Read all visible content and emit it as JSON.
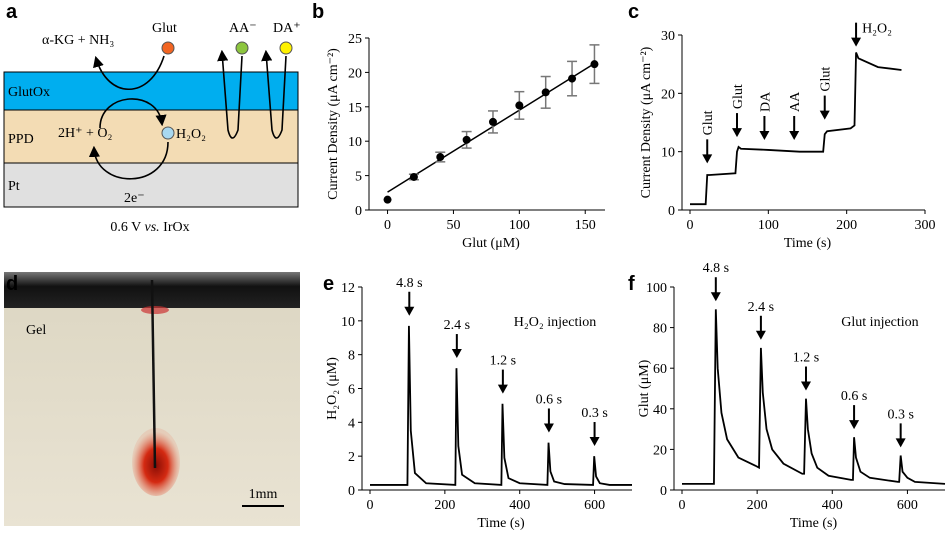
{
  "diagram": {
    "label": "a",
    "products": "α-KG + NH₃",
    "glut": "Glut",
    "aa": "AA⁻",
    "da": "DA⁺",
    "layers": [
      "GlutOx",
      "PPD",
      "Pt"
    ],
    "reactants": "2H⁺ + O₂",
    "h2o2": "H₂O₂",
    "electrons": "2e⁻",
    "potential": [
      "0.6 V ",
      "vs.",
      " IrOx"
    ]
  },
  "photo": {
    "label": "d",
    "gel": "Gel",
    "scale": "1mm"
  },
  "chart_data": [
    {
      "type": "scatter",
      "label": "b",
      "xlabel": "Glut (μM)",
      "ylabel": "Current Density (μA cm⁻²)",
      "xlim": [
        -8,
        165
      ],
      "xticks": [
        0,
        50,
        100,
        150
      ],
      "ylim": [
        0,
        25
      ],
      "yticks": [
        0,
        5,
        10,
        15,
        20,
        25
      ],
      "color": "#000000",
      "series": [
        {
          "x": [
            0,
            20,
            40,
            60,
            80,
            100,
            120,
            140,
            157
          ],
          "values": [
            1.5,
            4.8,
            7.7,
            10.2,
            12.8,
            15.2,
            17.1,
            19.1,
            21.2
          ],
          "errors": [
            0,
            0.4,
            0.7,
            1.2,
            1.6,
            2.0,
            2.3,
            2.5,
            2.8
          ]
        }
      ],
      "fit": {
        "x": [
          0,
          157
        ],
        "values": [
          2.6,
          21.3
        ]
      }
    },
    {
      "type": "line",
      "label": "c",
      "xlabel": "Time (s)",
      "ylabel": "Current Density (μA cm⁻²)",
      "xlim": [
        0,
        300
      ],
      "xticks": [
        0,
        100,
        200,
        300
      ],
      "ylim": [
        0,
        30
      ],
      "yticks": [
        0,
        10,
        20,
        30
      ],
      "color": "#000000",
      "x": [
        0,
        20,
        22,
        25,
        58,
        60,
        62,
        65,
        100,
        140,
        170,
        172,
        175,
        205,
        210,
        212,
        215,
        240,
        270
      ],
      "values": [
        1,
        1,
        6,
        6,
        6.3,
        10,
        10.8,
        10.5,
        10.3,
        10,
        10,
        13,
        13.5,
        14,
        14.5,
        27,
        26,
        24.5,
        24
      ],
      "annotations": [
        {
          "text": "Glut",
          "x": 22,
          "y": 8,
          "orientation": "vertical"
        },
        {
          "text": "Glut",
          "x": 60,
          "y": 12.5,
          "orientation": "vertical"
        },
        {
          "text": "DA",
          "x": 95,
          "y": 12,
          "orientation": "vertical"
        },
        {
          "text": "AA",
          "x": 133,
          "y": 12,
          "orientation": "vertical"
        },
        {
          "text": "Glut",
          "x": 172,
          "y": 15.5,
          "orientation": "vertical"
        },
        {
          "text": "H₂O₂",
          "x": 212,
          "y": 28,
          "orientation": "horizontal"
        }
      ]
    },
    {
      "type": "line",
      "label": "e",
      "xlabel": "Time (s)",
      "ylabel": "H₂O₂ (μM)",
      "note": "H₂O₂ injection",
      "xlim": [
        0,
        700
      ],
      "xticks": [
        0,
        200,
        400,
        600
      ],
      "ylim": [
        0,
        12
      ],
      "yticks": [
        0,
        2,
        4,
        6,
        8,
        10,
        12
      ],
      "color": "#000000",
      "x": [
        0,
        100,
        104,
        109,
        120,
        150,
        228,
        231,
        236,
        246,
        280,
        351,
        354,
        359,
        370,
        400,
        474,
        477,
        482,
        492,
        520,
        596,
        599,
        604,
        614,
        640,
        700
      ],
      "values": [
        0.3,
        0.3,
        9.7,
        3.5,
        1.0,
        0.4,
        0.3,
        7.2,
        2.6,
        0.9,
        0.4,
        0.3,
        5.1,
        1.9,
        0.7,
        0.4,
        0.3,
        2.8,
        1.1,
        0.5,
        0.35,
        0.3,
        2.0,
        0.8,
        0.4,
        0.3,
        0.3
      ],
      "annotations": [
        {
          "text": "4.8 s",
          "x": 105,
          "y": 10.3,
          "orientation": "horizontal"
        },
        {
          "text": "2.4 s",
          "x": 232,
          "y": 7.8,
          "orientation": "horizontal"
        },
        {
          "text": "1.2 s",
          "x": 355,
          "y": 5.7,
          "orientation": "horizontal"
        },
        {
          "text": "0.6 s",
          "x": 478,
          "y": 3.4,
          "orientation": "horizontal"
        },
        {
          "text": "0.3 s",
          "x": 600,
          "y": 2.6,
          "orientation": "horizontal"
        }
      ]
    },
    {
      "type": "line",
      "label": "f",
      "xlabel": "Time (s)",
      "ylabel": "Glut (μM)",
      "note": "Glut injection",
      "xlim": [
        0,
        700
      ],
      "xticks": [
        0,
        200,
        400,
        600
      ],
      "ylim": [
        0,
        100
      ],
      "yticks": [
        0,
        20,
        40,
        60,
        80,
        100
      ],
      "color": "#000000",
      "x": [
        0,
        85,
        90,
        95,
        105,
        120,
        150,
        195,
        205,
        210,
        215,
        225,
        240,
        270,
        320,
        325,
        330,
        335,
        345,
        360,
        390,
        450,
        455,
        458,
        463,
        475,
        500,
        575,
        578,
        582,
        587,
        600,
        620,
        700
      ],
      "values": [
        3,
        3,
        89,
        60,
        38,
        25,
        16,
        12,
        11,
        70,
        48,
        30,
        20,
        13,
        8,
        8,
        45,
        30,
        18,
        11,
        7,
        5,
        5,
        26,
        16,
        9,
        6,
        4,
        4,
        17,
        9,
        6,
        4,
        3
      ],
      "annotations": [
        {
          "text": "4.8 s",
          "x": 90,
          "y": 93,
          "orientation": "horizontal"
        },
        {
          "text": "2.4 s",
          "x": 210,
          "y": 74,
          "orientation": "horizontal"
        },
        {
          "text": "1.2 s",
          "x": 330,
          "y": 49,
          "orientation": "horizontal"
        },
        {
          "text": "0.6 s",
          "x": 458,
          "y": 30,
          "orientation": "horizontal"
        },
        {
          "text": "0.3 s",
          "x": 582,
          "y": 21,
          "orientation": "horizontal"
        }
      ]
    }
  ]
}
